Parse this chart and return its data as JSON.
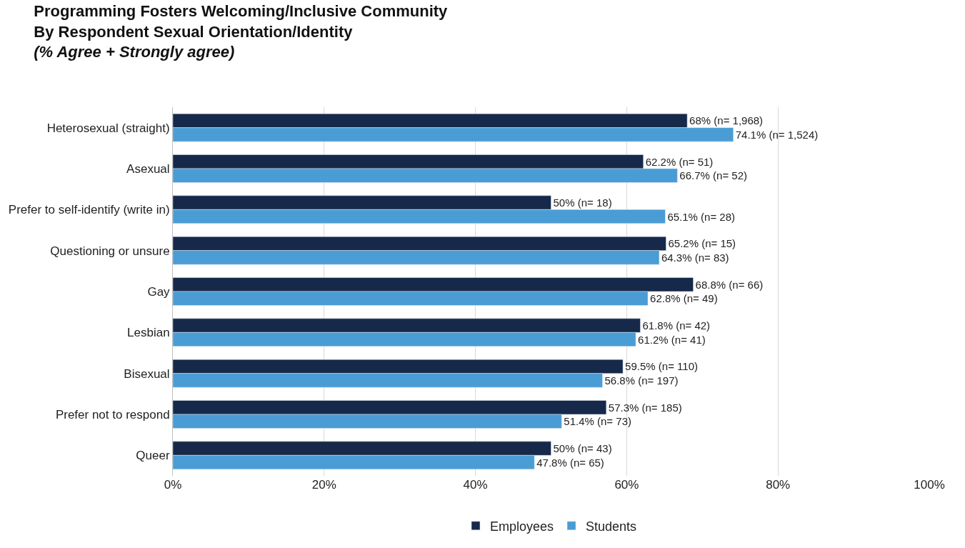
{
  "chart_data": {
    "type": "bar",
    "orientation": "horizontal",
    "title": "Programming Fosters Welcoming/Inclusive Community\nBy Respondent Sexual Orientation/Identity",
    "subtitle": "(% Agree + Strongly agree)",
    "categories": [
      "Heterosexual (straight)",
      "Asexual",
      "Prefer to self-identify (write in)",
      "Questioning or unsure",
      "Gay",
      "Lesbian",
      "Bisexual",
      "Prefer not to respond",
      "Queer"
    ],
    "series": [
      {
        "name": "Employees",
        "color": "#17294a",
        "values": [
          68,
          62.2,
          50,
          65.2,
          68.8,
          61.8,
          59.5,
          57.3,
          50
        ],
        "value_labels": [
          "68% (n= 1,968)",
          "62.2% (n= 51)",
          "50% (n= 18)",
          "65.2% (n= 15)",
          "68.8% (n= 66)",
          "61.8% (n= 42)",
          "59.5% (n= 110)",
          "57.3% (n= 185)",
          "50% (n= 43)"
        ]
      },
      {
        "name": "Students",
        "color": "#4a9cd4",
        "values": [
          74.1,
          66.7,
          65.1,
          64.3,
          62.8,
          61.2,
          56.8,
          51.4,
          47.8
        ],
        "value_labels": [
          "74.1% (n= 1,524)",
          "66.7% (n= 52)",
          "65.1% (n= 28)",
          "64.3% (n= 83)",
          "62.8% (n= 49)",
          "61.2% (n= 41)",
          "56.8% (n= 197)",
          "51.4% (n= 73)",
          "47.8% (n= 65)"
        ]
      }
    ],
    "xlim": [
      0,
      100
    ],
    "xticks": [
      {
        "value": 0,
        "label": "0%"
      },
      {
        "value": 20,
        "label": "20%"
      },
      {
        "value": 40,
        "label": "40%"
      },
      {
        "value": 60,
        "label": "60%"
      },
      {
        "value": 80,
        "label": "80%"
      },
      {
        "value": 100,
        "label": "100%"
      }
    ],
    "grid": "x",
    "legend": "bottom"
  }
}
